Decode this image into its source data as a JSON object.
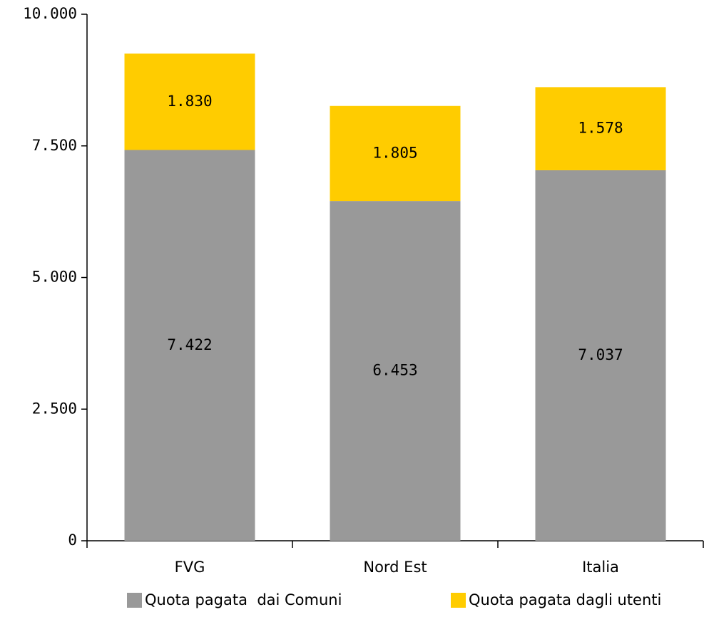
{
  "chart_data": {
    "type": "stacked_bar",
    "categories": [
      "FVG",
      "Nord Est",
      "Italia"
    ],
    "series": [
      {
        "name": "Quota pagata  dai Comuni",
        "color": "#999999",
        "values": [
          7422,
          6453,
          7037
        ],
        "value_labels": [
          "7.422",
          "6.453",
          "7.037"
        ]
      },
      {
        "name": "Quota pagata dagli utenti",
        "color": "#ffcc00",
        "values": [
          1830,
          1805,
          1578
        ],
        "value_labels": [
          "1.830",
          "1.805",
          "1.578"
        ]
      }
    ],
    "ylim": [
      0,
      10000
    ],
    "yticks": [
      0,
      {
        "value": 2500,
        "label": "2.500"
      },
      {
        "value": 5000,
        "label": "5.000"
      },
      {
        "value": 7500,
        "label": "7.500"
      },
      {
        "value": 10000,
        "label": "10.000"
      }
    ],
    "grid": false,
    "legend": "bottom"
  }
}
